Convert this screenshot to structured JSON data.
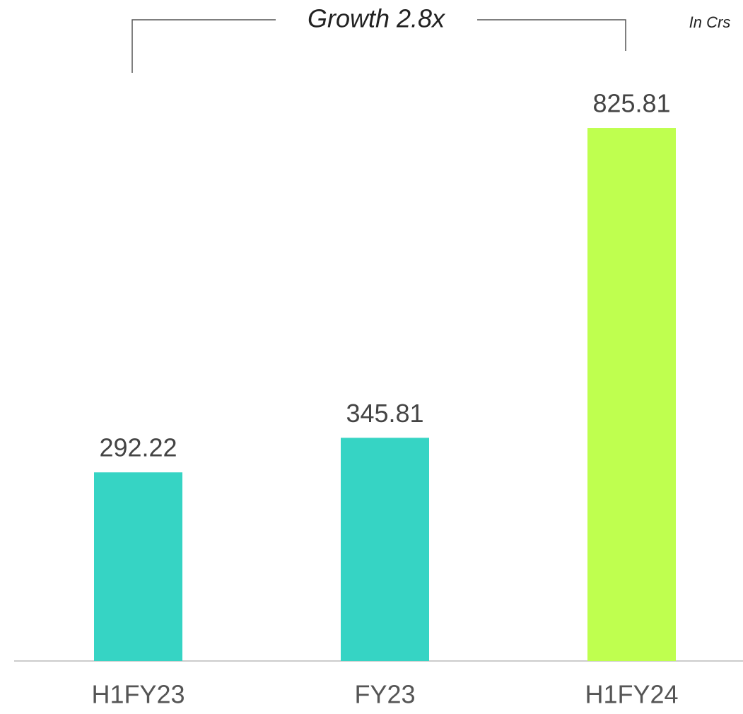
{
  "chart_data": {
    "type": "bar",
    "annotation": "Growth 2.8x",
    "unit_note": "In Crs",
    "categories": [
      "H1FY23",
      "FY23",
      "H1FY24"
    ],
    "values": [
      292.22,
      345.81,
      825.81
    ],
    "colors": [
      "#36d4c4",
      "#36d4c4",
      "#bfff4f"
    ],
    "ylim": [
      0,
      1000
    ]
  }
}
